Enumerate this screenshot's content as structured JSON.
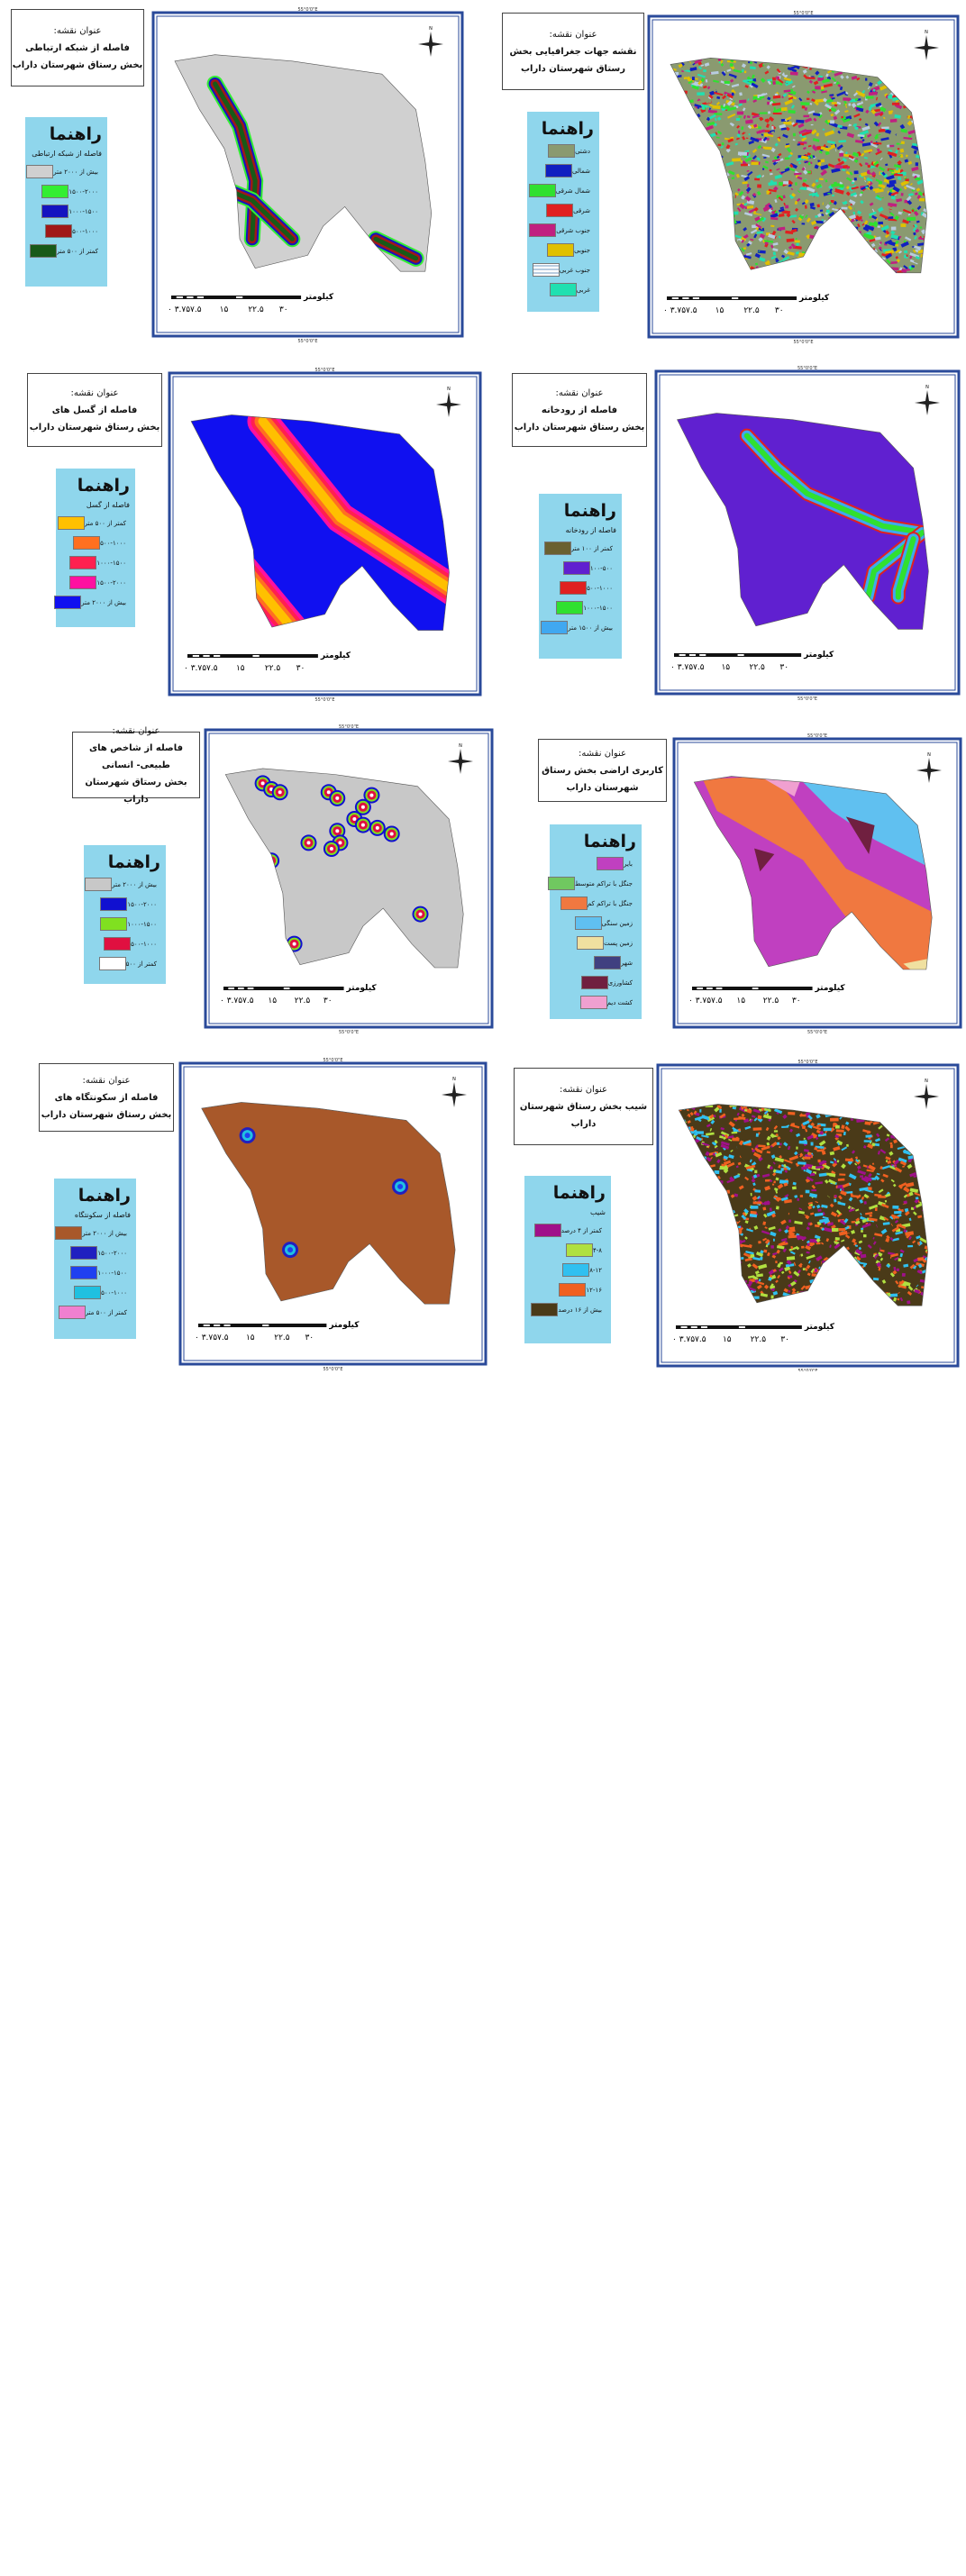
{
  "coord": "55°0'0\"E",
  "north": "N",
  "title_label": "عنوان نقشه:",
  "legend_heading": "راهنما",
  "km": "کیلومتر",
  "scale_ticks": [
    "۰ ۳.۷۵۷.۵",
    "۱۵",
    "۲۲.۵",
    "۳۰"
  ],
  "panels": [
    {
      "title": [
        "فاصله از شبکه ارتباطی",
        "بخش رستاق شهرستان داراب"
      ],
      "legend": {
        "subtitle": "فاصله از شبکه ارتباطی",
        "items": [
          {
            "label": "بیش از ۲۰۰۰ متر",
            "color": "#d0d0d0"
          },
          {
            "label": "۱۵۰۰-۲۰۰۰",
            "color": "#33ee33"
          },
          {
            "label": "۱۰۰۰-۱۵۰۰",
            "color": "#1414c0"
          },
          {
            "label": "۵۰۰-۱۰۰۰",
            "color": "#a01818"
          },
          {
            "label": "کمتر از ۵۰۰ متر",
            "color": "#185a18"
          }
        ]
      }
    },
    {
      "title": [
        "نقشه جهات جغرافیایی بخش",
        "رستاق شهرستان داراب"
      ],
      "legend": {
        "items": [
          {
            "label": "دشتی",
            "color": "#8a9a70"
          },
          {
            "label": "شمالی",
            "color": "#1020c0"
          },
          {
            "label": "شمال شرقی",
            "color": "#30e030"
          },
          {
            "label": "شرقی",
            "color": "#e02020"
          },
          {
            "label": "جنوب شرقی",
            "color": "#c02080"
          },
          {
            "label": "جنوبی",
            "color": "#e0c000"
          },
          {
            "label": "جنوب غربی",
            "color": "#b8cce0"
          },
          {
            "label": "غربی",
            "color": "#20e0b0"
          }
        ]
      }
    },
    {
      "title": [
        "فاصله از گسل های",
        "بخش رستاق شهرستان داراب"
      ],
      "legend": {
        "subtitle": "فاصله از گسل",
        "items": [
          {
            "label": "کمتر از ۵۰۰ متر",
            "color": "#ffc000"
          },
          {
            "label": "۵۰۰-۱۰۰۰",
            "color": "#ff7020"
          },
          {
            "label": "۱۰۰۰-۱۵۰۰",
            "color": "#ff2050"
          },
          {
            "label": "۱۵۰۰-۲۰۰۰",
            "color": "#ff10a0"
          },
          {
            "label": "بیش از ۲۰۰۰ متر",
            "color": "#1010f0"
          }
        ]
      }
    },
    {
      "title": [
        "فاصله از رودخانه",
        "بخش رستاق شهرستان داراب"
      ],
      "legend": {
        "subtitle": "فاصله از رودخانه",
        "items": [
          {
            "label": "کمتر از ۱۰۰ متر",
            "color": "#6a6030"
          },
          {
            "label": "۱۰۰-۵۰۰",
            "color": "#6020d0"
          },
          {
            "label": "۵۰۰-۱۰۰۰",
            "color": "#e02020"
          },
          {
            "label": "۱۰۰۰-۱۵۰۰",
            "color": "#30e030"
          },
          {
            "label": "بیش از ۱۵۰۰ متر",
            "color": "#40a8f0"
          }
        ]
      }
    },
    {
      "title": [
        "فاصله از شاخص های طبیعی- انسانی",
        "بخش رستاق شهرستان داراب"
      ],
      "legend": {
        "items": [
          {
            "label": "بیش از ۲۰۰۰ متر",
            "color": "#c8c8c8"
          },
          {
            "label": "۱۵۰۰-۲۰۰۰",
            "color": "#1010d0"
          },
          {
            "label": "۱۰۰۰-۱۵۰۰",
            "color": "#80e020"
          },
          {
            "label": "۵۰۰-۱۰۰۰",
            "color": "#e01040"
          },
          {
            "label": "کمتر از ۵۰۰",
            "color": "#ffffff"
          }
        ]
      }
    },
    {
      "title": [
        "کاربری اراضی بخش رستاق",
        "شهرستان داراب"
      ],
      "legend": {
        "items": [
          {
            "label": "بایر",
            "color": "#c040c0"
          },
          {
            "label": "جنگل با تراکم متوسط",
            "color": "#70c860"
          },
          {
            "label": "جنگل با تراکم کم",
            "color": "#f07840"
          },
          {
            "label": "زمین سنگی",
            "color": "#60c0f0"
          },
          {
            "label": "زمین پست",
            "color": "#f0e0a0"
          },
          {
            "label": "شهر",
            "color": "#404080"
          },
          {
            "label": "کشاورزی",
            "color": "#702040"
          },
          {
            "label": "کشت دیم",
            "color": "#f0a0d0"
          }
        ]
      }
    },
    {
      "title": [
        "فاصله از سکونتگاه های",
        "بخش رستاق شهرستان داراب"
      ],
      "legend": {
        "subtitle": "فاصله از سکونتگاه",
        "items": [
          {
            "label": "بیش از ۲۰۰۰ متر",
            "color": "#a8582a"
          },
          {
            "label": "۱۵۰۰-۲۰۰۰",
            "color": "#2020c0"
          },
          {
            "label": "۱۰۰۰-۱۵۰۰",
            "color": "#2040f0"
          },
          {
            "label": "۵۰۰-۱۰۰۰",
            "color": "#20c0e0"
          },
          {
            "label": "کمتر از ۵۰۰ متر",
            "color": "#f080d0"
          }
        ]
      }
    },
    {
      "title": [
        "شیب بخش رستاق شهرستان داراب"
      ],
      "legend": {
        "subtitle": "شیب",
        "items": [
          {
            "label": "کمتر از ۴ درصد",
            "color": "#a0108a"
          },
          {
            "label": "۴-۸",
            "color": "#b0e040"
          },
          {
            "label": "۸-۱۲",
            "color": "#30c0f0"
          },
          {
            "label": "۱۲-۱۶",
            "color": "#f06020"
          },
          {
            "label": "بیش از ۱۶ درصد",
            "color": "#4a3a18"
          }
        ]
      }
    }
  ]
}
